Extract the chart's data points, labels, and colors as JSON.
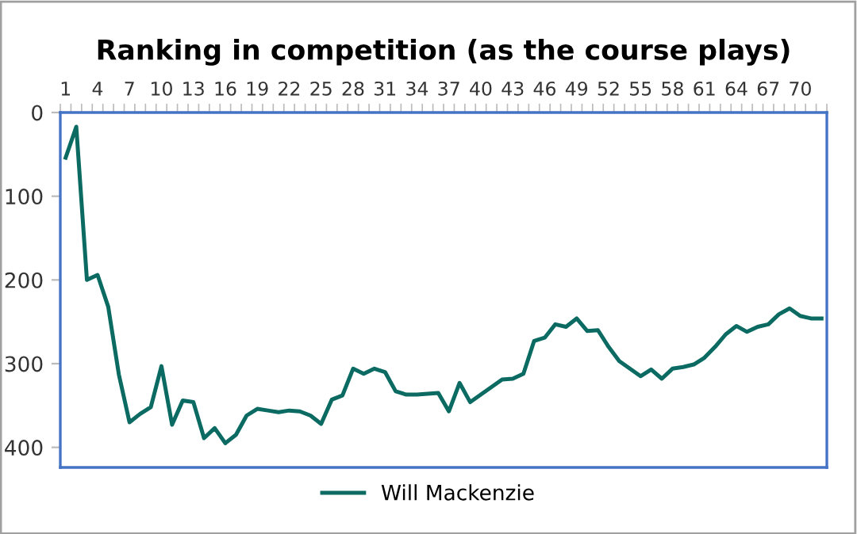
{
  "chart_data": {
    "type": "line",
    "title": "Ranking in competition (as the course plays)",
    "categories": [
      "1",
      null,
      null,
      "4",
      null,
      null,
      "7",
      null,
      null,
      "10",
      null,
      null,
      "13",
      null,
      null,
      "16",
      null,
      null,
      "19",
      null,
      null,
      "22",
      null,
      null,
      "25",
      null,
      null,
      "28",
      null,
      null,
      "31",
      null,
      null,
      "34",
      null,
      null,
      "37",
      null,
      null,
      "40",
      null,
      null,
      "43",
      null,
      null,
      "46",
      null,
      null,
      "49",
      null,
      null,
      "52",
      null,
      null,
      "55",
      null,
      null,
      "58",
      null,
      null,
      "61",
      null,
      null,
      "64",
      null,
      null,
      "67",
      null,
      null,
      "70",
      null,
      null
    ],
    "series": [
      {
        "name": "Will Mackenzie",
        "color": "#0b6b63",
        "values": [
          54,
          17,
          200,
          194,
          232,
          313,
          370,
          360,
          352,
          303,
          373,
          344,
          346,
          389,
          377,
          395,
          385,
          362,
          354,
          356,
          358,
          356,
          357,
          362,
          372,
          343,
          338,
          306,
          312,
          306,
          310,
          333,
          337,
          337,
          336,
          335,
          357,
          323,
          346,
          337,
          328,
          319,
          318,
          312,
          273,
          269,
          253,
          256,
          246,
          261,
          260,
          280,
          297,
          306,
          315,
          307,
          318,
          306,
          304,
          301,
          293,
          280,
          265,
          255,
          262,
          256,
          253,
          241,
          234,
          243,
          246,
          246
        ]
      }
    ],
    "ylim": [
      424,
      0
    ],
    "yticks": [
      0,
      100,
      200,
      300,
      400
    ],
    "grid": false,
    "legend": "bottom",
    "line_style": "solid",
    "marker": "none"
  }
}
